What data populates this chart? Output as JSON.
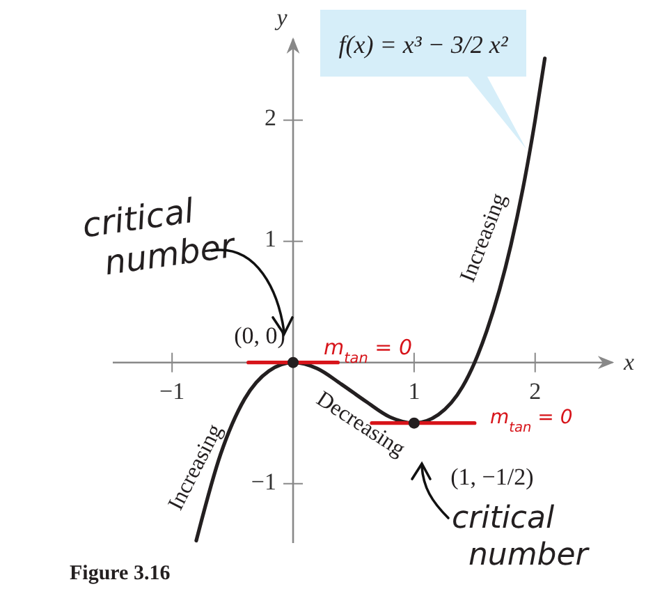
{
  "chart_data": {
    "type": "line",
    "xlabel": "x",
    "ylabel": "y",
    "xlim": [
      -1.49,
      2.64
    ],
    "ylim": [
      -1.49,
      2.67
    ],
    "xticks": [
      -1,
      1,
      2
    ],
    "yticks": [
      -1,
      1,
      2
    ],
    "series": [
      {
        "color": "#231f20",
        "x": [
          -0.8,
          -0.6,
          -0.4,
          -0.2,
          0,
          0.2,
          0.4,
          0.6,
          0.8,
          1,
          1.2,
          1.4,
          1.5,
          1.6,
          1.8,
          1.9,
          2,
          2.08
        ],
        "values": [
          -1.47,
          -0.76,
          -0.3,
          -0.07,
          0,
          -0.05,
          -0.18,
          -0.32,
          -0.45,
          -0.5,
          -0.43,
          -0.2,
          0,
          0.26,
          0.97,
          1.44,
          2,
          2.51
        ]
      },
      {
        "type": "line",
        "color": "#d7141a",
        "x": [
          -0.37,
          0.37
        ],
        "values": [
          0,
          0
        ]
      },
      {
        "type": "line",
        "color": "#d7141a",
        "x": [
          0.65,
          1.5
        ],
        "values": [
          -0.5,
          -0.5
        ]
      },
      {
        "type": "scatter",
        "marker": "circle",
        "color": "#231f20",
        "x": [
          0,
          1
        ],
        "values": [
          0,
          -0.5
        ]
      }
    ],
    "annotations": [
      "f(x) = x³ − 3/2 x²",
      {
        "text": "(0, 0)",
        "x": 0,
        "y": 0
      },
      {
        "text": "(1, −1/2)",
        "x": 1,
        "y": -0.5
      },
      {
        "text": "Increasing",
        "x": -0.5,
        "y": -0.5
      },
      {
        "text": "Increasing",
        "x": 1.8,
        "y": 0.97
      },
      {
        "text": "Decreasing",
        "x": 0.6,
        "y": -0.32
      },
      "Figure 3.16",
      {
        "text": "critical number",
        "x": 0,
        "y": 0
      },
      {
        "text": "critical number",
        "x": 1,
        "y": -0.5
      },
      {
        "text": "m$_{tan}$ = 0",
        "x": 0,
        "y": 0
      },
      "m$_{tan}$ = 0"
    ]
  }
}
